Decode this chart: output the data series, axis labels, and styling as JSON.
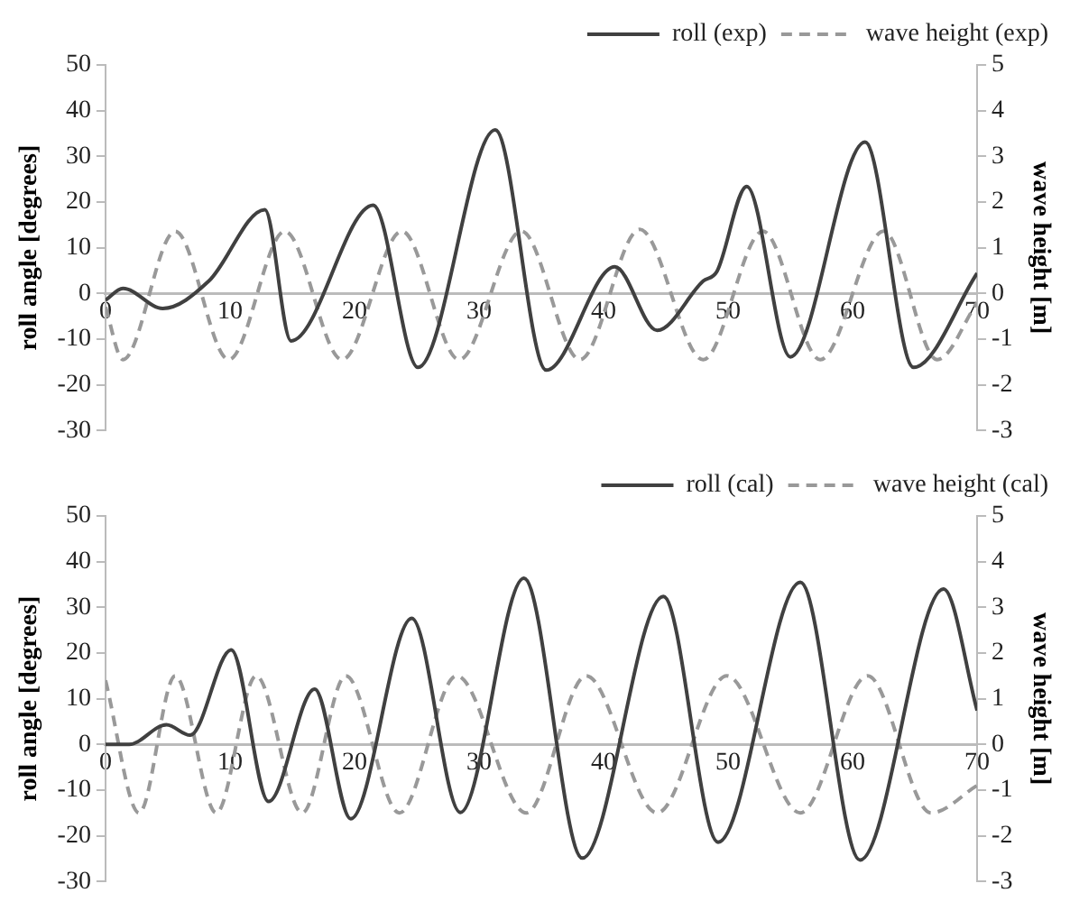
{
  "chart_data": [
    {
      "type": "line",
      "ylabel": "roll angle [degrees]",
      "y2label": "wave height [m]",
      "xlim": [
        0,
        70
      ],
      "xticks": [
        0,
        10,
        20,
        30,
        40,
        50,
        60,
        70
      ],
      "ylim": [
        -30,
        50
      ],
      "yticks": [
        -30,
        -20,
        -10,
        0,
        10,
        20,
        30,
        40,
        50
      ],
      "y2lim": [
        -3,
        5
      ],
      "y2ticks": [
        -3,
        -2,
        -1,
        0,
        1,
        2,
        3,
        4,
        5
      ],
      "grid": false,
      "legend": "top right",
      "marker": "none",
      "series": [
        {
          "name": "roll (exp)",
          "color": "#404040",
          "line_style": "solid",
          "x": [
            0,
            1.4,
            4.6,
            8.3,
            12.8,
            14.9,
            21.5,
            25.1,
            31.3,
            35.4,
            40.9,
            44.3,
            48,
            49.1,
            51.5,
            55,
            61,
            64.9,
            70
          ],
          "values": [
            -1.5,
            1.1,
            -3.3,
            2.7,
            18.3,
            -10.4,
            19.3,
            -16.2,
            35.8,
            -16.8,
            5.8,
            -8.1,
            2.7,
            4.8,
            23.4,
            -13.9,
            33.1,
            -16.2,
            4.4
          ]
        },
        {
          "name": "wave height (exp)",
          "color": "#999999",
          "line_style": "dashed",
          "axis": "y2",
          "x": [
            0,
            1.4,
            5.6,
            9.9,
            14.4,
            19,
            23.8,
            28.4,
            33.4,
            38.1,
            42.9,
            48,
            52.8,
            57.4,
            62.5,
            66.8,
            70
          ],
          "values": [
            -0.3,
            -1.45,
            1.36,
            -1.45,
            1.36,
            -1.45,
            1.36,
            -1.45,
            1.36,
            -1.45,
            1.4,
            -1.45,
            1.36,
            -1.45,
            1.36,
            -1.45,
            -0.2
          ]
        }
      ]
    },
    {
      "type": "line",
      "ylabel": "roll angle [degrees]",
      "y2label": "wave height [m]",
      "xlim": [
        0,
        70
      ],
      "xticks": [
        0,
        10,
        20,
        30,
        40,
        50,
        60,
        70
      ],
      "ylim": [
        -30,
        50
      ],
      "yticks": [
        -30,
        -20,
        -10,
        0,
        10,
        20,
        30,
        40,
        50
      ],
      "y2lim": [
        -3,
        5
      ],
      "y2ticks": [
        -3,
        -2,
        -1,
        0,
        1,
        2,
        3,
        4,
        5
      ],
      "grid": false,
      "legend": "top right",
      "marker": "none",
      "series": [
        {
          "name": "roll (cal)",
          "color": "#404040",
          "line_style": "solid",
          "x": [
            0,
            1.9,
            4.9,
            6.8,
            10.1,
            13.1,
            16.8,
            19.7,
            24.6,
            28.5,
            33.6,
            38.3,
            44.8,
            49.2,
            55.8,
            60.6,
            67.3,
            70
          ],
          "values": [
            0,
            0,
            4.3,
            2,
            20.7,
            -12.5,
            12.1,
            -16.3,
            27.6,
            -14.9,
            36.4,
            -24.9,
            32.4,
            -21.4,
            35.5,
            -25.3,
            34,
            7.4
          ]
        },
        {
          "name": "wave height (cal)",
          "color": "#999999",
          "line_style": "dashed",
          "axis": "y2",
          "x": [
            0,
            2.7,
            5.6,
            8.9,
            12.1,
            15.8,
            19.3,
            23.6,
            28.2,
            33.8,
            38.6,
            44.3,
            49.9,
            55.8,
            61.2,
            66.3,
            70
          ],
          "values": [
            1.4,
            -1.5,
            1.5,
            -1.5,
            1.5,
            -1.5,
            1.5,
            -1.5,
            1.5,
            -1.5,
            1.5,
            -1.5,
            1.5,
            -1.5,
            1.5,
            -1.5,
            -0.9
          ]
        }
      ]
    }
  ]
}
